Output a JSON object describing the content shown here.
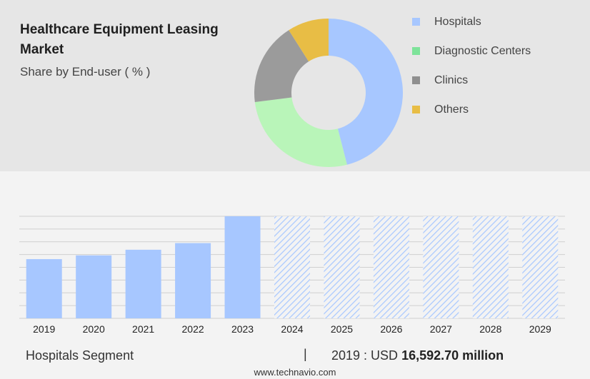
{
  "header": {
    "title": "Healthcare Equipment Leasing Market",
    "subtitle": "Share by End-user ( % )"
  },
  "donut": {
    "segments": [
      {
        "label": "Hospitals",
        "value": 46,
        "color": "#a7c7ff"
      },
      {
        "label": "Diagnostic Centers",
        "value": 27,
        "color": "#b9f5b9"
      },
      {
        "label": "Clinics",
        "value": 18,
        "color": "#9b9b9b"
      },
      {
        "label": "Others",
        "value": 9,
        "color": "#e8bd45"
      }
    ]
  },
  "legend": {
    "items": [
      {
        "label": "Hospitals",
        "color": "#a7c7ff"
      },
      {
        "label": "Diagnostic Centers",
        "color": "#7ee39a"
      },
      {
        "label": "Clinics",
        "color": "#8f8f8f"
      },
      {
        "label": "Others",
        "color": "#e8bd45"
      }
    ]
  },
  "chart_data": {
    "type": "bar",
    "categories": [
      "2019",
      "2020",
      "2021",
      "2022",
      "2023",
      "2024",
      "2025",
      "2026",
      "2027",
      "2028",
      "2029"
    ],
    "values": [
      16592.7,
      17640,
      19220,
      21080,
      28600,
      28600,
      28600,
      28600,
      28600,
      28600,
      28600
    ],
    "forecast_start_index": 5,
    "ylim": [
      0,
      28600
    ],
    "grid": true,
    "colors": {
      "actual": "#a7c7ff",
      "forecast_hatch": "#a7c7ff"
    }
  },
  "footer": {
    "segment_label": "Hospitals Segment",
    "separator": "|",
    "year_prefix": "2019 : USD ",
    "value_text": "16,592.70 million",
    "source": "www.technavio.com"
  }
}
